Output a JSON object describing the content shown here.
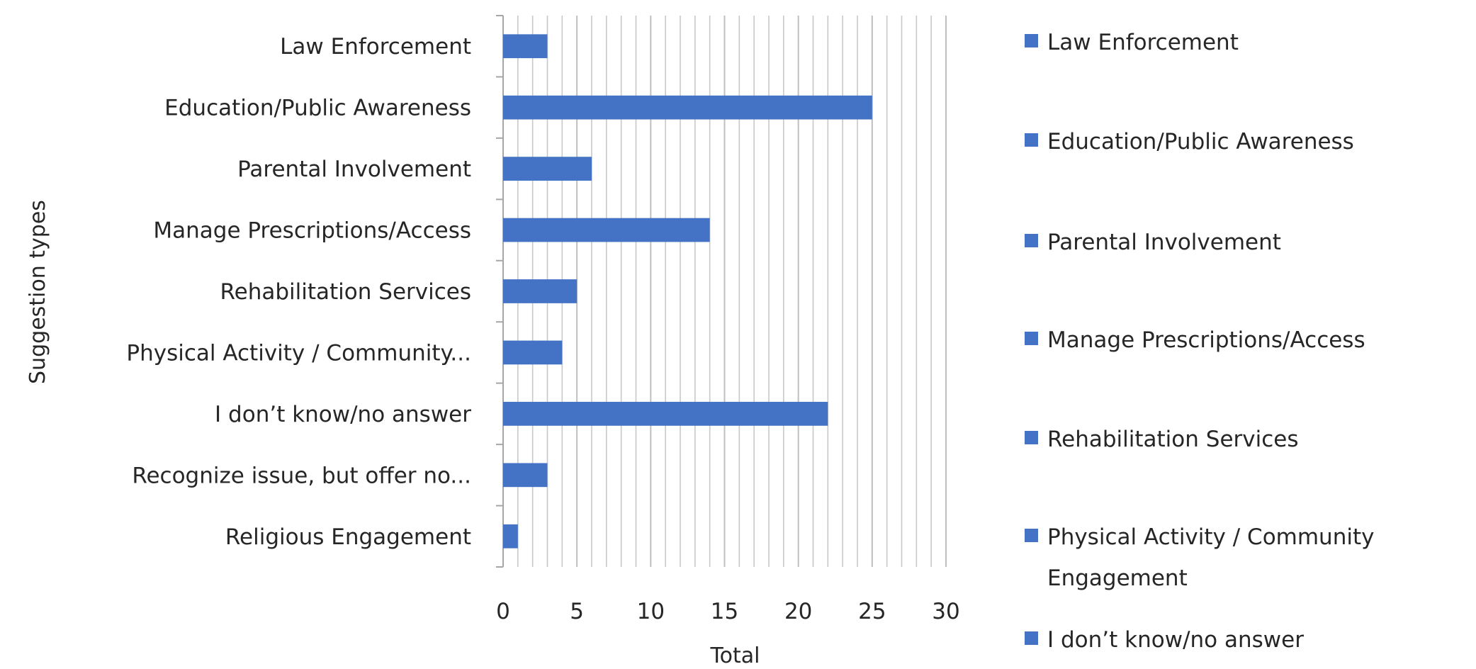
{
  "chart_data": {
    "type": "bar",
    "orientation": "horizontal",
    "categories": [
      "Law Enforcement",
      "Education/Public Awareness",
      "Parental Involvement",
      "Manage Prescriptions/Access",
      "Rehabilitation Services",
      "Physical Activity / Community...",
      "I don’t know/no answer",
      "Recognize issue, but offer no...",
      "Religious Engagement"
    ],
    "values": [
      3,
      25,
      6,
      14,
      5,
      4,
      22,
      3,
      1
    ],
    "xlabel": "Total",
    "ylabel": "Suggestion types",
    "xlim": [
      0,
      30
    ],
    "xticks": [
      0,
      5,
      10,
      15,
      20,
      25,
      30
    ],
    "minor_gridlines_every": 1,
    "grid": true,
    "bar_color": "#4472C4",
    "legend_position": "right",
    "legend": [
      "Law Enforcement",
      "Education/Public Awareness",
      "Parental Involvement",
      "Manage Prescriptions/Access",
      "Rehabilitation Services",
      "Physical Activity / Community Engagement",
      "I don’t know/no answer"
    ]
  }
}
